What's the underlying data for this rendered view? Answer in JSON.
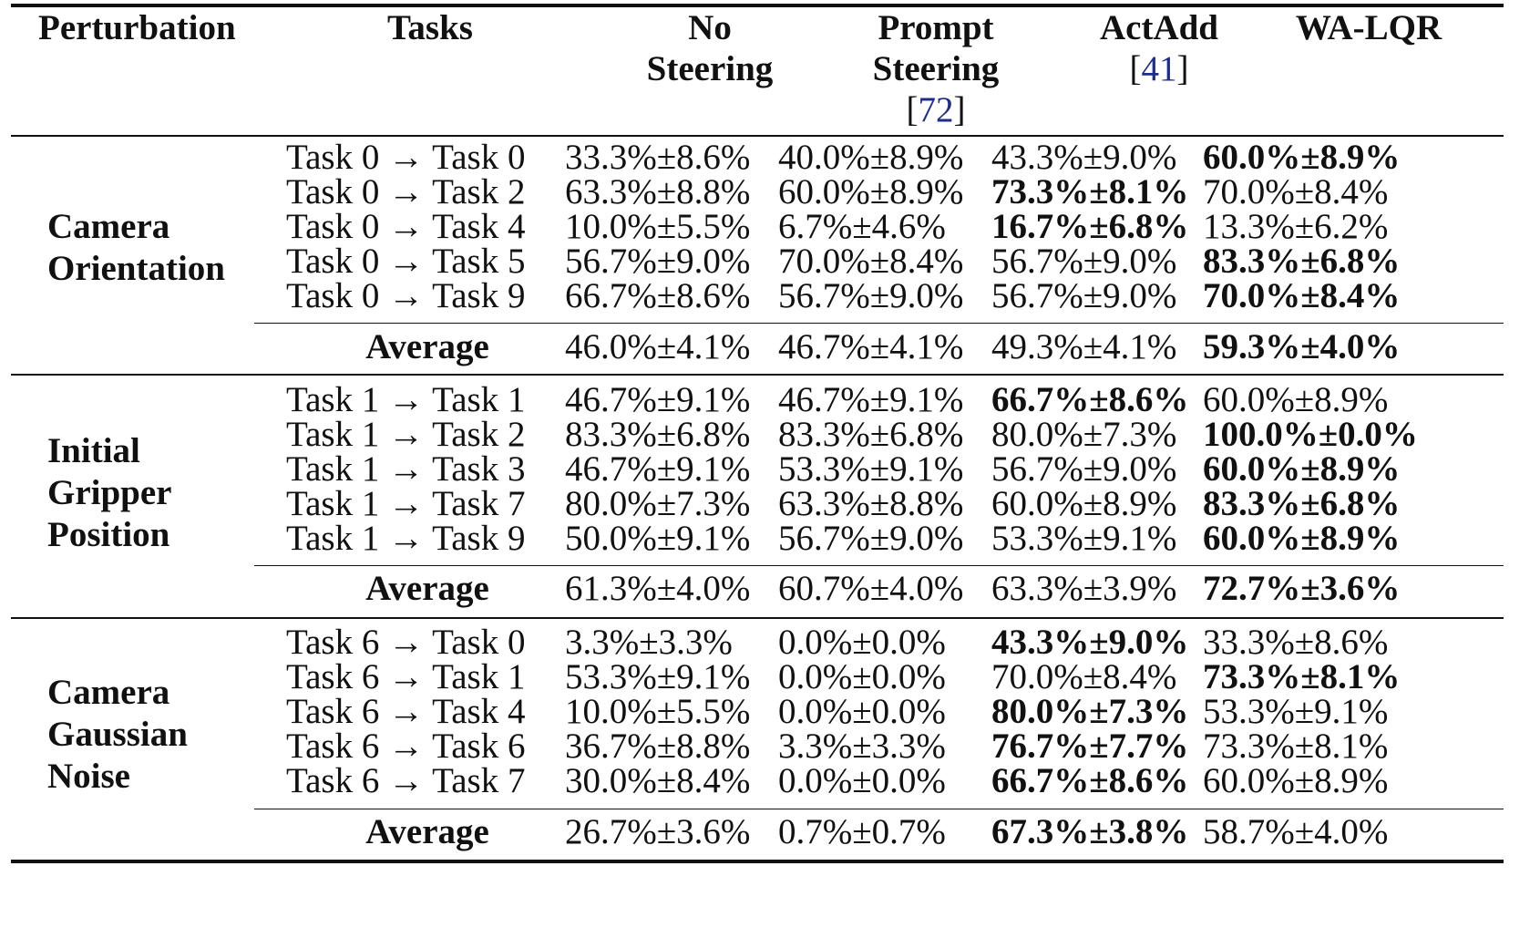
{
  "headers": {
    "perturbation": "Perturbation",
    "tasks": "Tasks",
    "no_steering_line1": "No",
    "no_steering_line2": "Steering",
    "prompt_steering_line1": "Prompt",
    "prompt_steering_line2": "Steering",
    "prompt_steering_cite": "72",
    "actadd": "ActAdd",
    "actadd_cite": "41",
    "walqr": "WA-LQR",
    "open_bracket": "[",
    "close_bracket": "]"
  },
  "groups": [
    {
      "perturbation_lines": [
        "Camera",
        "Orientation"
      ],
      "rows": [
        {
          "task": "Task 0 → Task 0",
          "no": "33.3%±8.6%",
          "prompt": "40.0%±8.9%",
          "actadd": "43.3%±9.0%",
          "walqr": "60.0%±8.9%",
          "best": "walqr"
        },
        {
          "task": "Task 0 → Task 2",
          "no": "63.3%±8.8%",
          "prompt": "60.0%±8.9%",
          "actadd": "73.3%±8.1%",
          "walqr": "70.0%±8.4%",
          "best": "actadd"
        },
        {
          "task": "Task 0 → Task 4",
          "no": "10.0%±5.5%",
          "prompt": "6.7%±4.6%",
          "actadd": "16.7%±6.8%",
          "walqr": "13.3%±6.2%",
          "best": "actadd"
        },
        {
          "task": "Task 0 → Task 5",
          "no": "56.7%±9.0%",
          "prompt": "70.0%±8.4%",
          "actadd": "56.7%±9.0%",
          "walqr": "83.3%±6.8%",
          "best": "walqr"
        },
        {
          "task": "Task 0 → Task 9",
          "no": "66.7%±8.6%",
          "prompt": "56.7%±9.0%",
          "actadd": "56.7%±9.0%",
          "walqr": "70.0%±8.4%",
          "best": "walqr"
        }
      ],
      "average": {
        "label": "Average",
        "no": "46.0%±4.1%",
        "prompt": "46.7%±4.1%",
        "actadd": "49.3%±4.1%",
        "walqr": "59.3%±4.0%",
        "best": "walqr"
      }
    },
    {
      "perturbation_lines": [
        "Initial",
        "Gripper",
        "Position"
      ],
      "rows": [
        {
          "task": "Task 1 → Task 1",
          "no": "46.7%±9.1%",
          "prompt": "46.7%±9.1%",
          "actadd": "66.7%±8.6%",
          "walqr": "60.0%±8.9%",
          "best": "actadd"
        },
        {
          "task": "Task 1 → Task 2",
          "no": "83.3%±6.8%",
          "prompt": "83.3%±6.8%",
          "actadd": "80.0%±7.3%",
          "walqr": "100.0%±0.0%",
          "best": "walqr"
        },
        {
          "task": "Task 1 → Task 3",
          "no": "46.7%±9.1%",
          "prompt": "53.3%±9.1%",
          "actadd": "56.7%±9.0%",
          "walqr": "60.0%±8.9%",
          "best": "walqr"
        },
        {
          "task": "Task 1 → Task 7",
          "no": "80.0%±7.3%",
          "prompt": "63.3%±8.8%",
          "actadd": "60.0%±8.9%",
          "walqr": "83.3%±6.8%",
          "best": "walqr"
        },
        {
          "task": "Task 1 → Task 9",
          "no": "50.0%±9.1%",
          "prompt": "56.7%±9.0%",
          "actadd": "53.3%±9.1%",
          "walqr": "60.0%±8.9%",
          "best": "walqr"
        }
      ],
      "average": {
        "label": "Average",
        "no": "61.3%±4.0%",
        "prompt": "60.7%±4.0%",
        "actadd": "63.3%±3.9%",
        "walqr": "72.7%±3.6%",
        "best": "walqr"
      }
    },
    {
      "perturbation_lines": [
        "Camera",
        "Gaussian",
        "Noise"
      ],
      "rows": [
        {
          "task": "Task 6 → Task 0",
          "no": "3.3%±3.3%",
          "prompt": "0.0%±0.0%",
          "actadd": "43.3%±9.0%",
          "walqr": "33.3%±8.6%",
          "best": "actadd"
        },
        {
          "task": "Task 6 → Task 1",
          "no": "53.3%±9.1%",
          "prompt": "0.0%±0.0%",
          "actadd": "70.0%±8.4%",
          "walqr": "73.3%±8.1%",
          "best": "walqr"
        },
        {
          "task": "Task 6 → Task 4",
          "no": "10.0%±5.5%",
          "prompt": "0.0%±0.0%",
          "actadd": "80.0%±7.3%",
          "walqr": "53.3%±9.1%",
          "best": "actadd"
        },
        {
          "task": "Task 6 → Task 6",
          "no": "36.7%±8.8%",
          "prompt": "3.3%±3.3%",
          "actadd": "76.7%±7.7%",
          "walqr": "73.3%±8.1%",
          "best": "actadd"
        },
        {
          "task": "Task 6 → Task 7",
          "no": "30.0%±8.4%",
          "prompt": "0.0%±0.0%",
          "actadd": "66.7%±8.6%",
          "walqr": "60.0%±8.9%",
          "best": "actadd"
        }
      ],
      "average": {
        "label": "Average",
        "no": "26.7%±3.6%",
        "prompt": "0.7%±0.7%",
        "actadd": "67.3%±3.8%",
        "walqr": "58.7%±4.0%",
        "best": "actadd"
      }
    }
  ]
}
